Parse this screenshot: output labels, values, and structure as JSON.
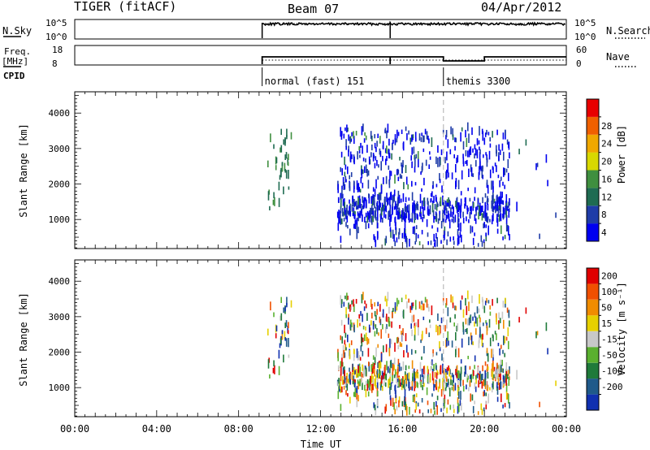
{
  "header": {
    "station": "TIGER (fitACF)",
    "beam": "Beam 07",
    "date": "04/Apr/2012"
  },
  "nsky_panel": {
    "left_label": "N.Sky",
    "right_label": "N.Search",
    "left_ticks": [
      "10^5",
      "10^0"
    ],
    "right_ticks": [
      "10^5",
      "10^0"
    ]
  },
  "freq_panel": {
    "left_label_1": "Freq.",
    "left_label_2": "[MHz]",
    "right_label": "Nave",
    "left_ticks": [
      "18",
      "8"
    ],
    "right_ticks": [
      "60",
      "0"
    ]
  },
  "cpid_panel": {
    "label": "CPID",
    "modes": [
      {
        "start_hour": 9.15,
        "text": "normal (fast) 151"
      },
      {
        "start_hour": 18.0,
        "text": "themis 3300"
      }
    ]
  },
  "x_axis": {
    "label": "Time UT",
    "ticks": [
      "00:00",
      "04:00",
      "08:00",
      "12:00",
      "16:00",
      "20:00",
      "00:00"
    ],
    "range_hours": [
      0,
      24
    ]
  },
  "power_panel": {
    "ylabel": "Slant Range [km]",
    "yticks": [
      "1000",
      "2000",
      "3000",
      "4000"
    ],
    "colorbar_label": "Power [dB]",
    "colorbar_ticks": [
      "4",
      "8",
      "12",
      "16",
      "20",
      "24",
      "28"
    ]
  },
  "velocity_panel": {
    "ylabel": "Slant Range [km]",
    "yticks": [
      "1000",
      "2000",
      "3000",
      "4000"
    ],
    "colorbar_label": "Velocity [m s⁻¹]",
    "colorbar_ticks": [
      "200",
      "100",
      "50",
      "15",
      "-15",
      "-50",
      "-100",
      "-200"
    ]
  },
  "colors": {
    "power_scale": [
      "#0000f0",
      "#1f3ca8",
      "#1f6b52",
      "#3f8f3f",
      "#d8d800",
      "#f0a800",
      "#f06000",
      "#e80000"
    ],
    "velocity_scale": [
      "#1030b0",
      "#1f5a8a",
      "#1f7a3a",
      "#5ab02f",
      "#c8c8c8",
      "#e6d000",
      "#f08c00",
      "#f05000",
      "#e00000"
    ]
  },
  "chart_data": [
    {
      "type": "line",
      "title": "N.Sky",
      "x_units": "hours UT",
      "segments": [
        {
          "x": [
            0,
            9.15,
            9.15,
            15.4,
            15.4,
            24
          ],
          "y_log10": [
            null,
            0,
            4.7,
            4.7,
            0,
            4.7
          ]
        }
      ],
      "ylim_log10": [
        0,
        5
      ],
      "note_text": ""
    },
    {
      "type": "line",
      "title": "Freq.",
      "x": [
        9.15,
        15.4,
        15.4,
        18.0,
        18.0,
        20.0,
        20.0,
        24.0
      ],
      "y": [
        11,
        11,
        11,
        10,
        10,
        10,
        11,
        11
      ],
      "ylim": [
        8,
        18
      ]
    },
    {
      "type": "heatmap",
      "title": "Power [dB]",
      "xlabel": "Time UT",
      "ylabel": "Slant Range [km]",
      "xlim": [
        0,
        24
      ],
      "ylim": [
        180,
        4600
      ],
      "colorbar_range": [
        0,
        30
      ],
      "data_clusters": [
        {
          "x_range": [
            9.5,
            10.5
          ],
          "y_range": [
            1200,
            3400
          ],
          "dominant_value": 12
        },
        {
          "x_range": [
            12.8,
            21.0
          ],
          "y_range": [
            200,
            3500
          ],
          "dominant_value": 5
        },
        {
          "x_range": [
            13.0,
            18.0
          ],
          "y_range": [
            900,
            1500
          ],
          "dominant_value": 6
        }
      ]
    },
    {
      "type": "heatmap",
      "title": "Velocity [m s⁻¹]",
      "xlabel": "Time UT",
      "ylabel": "Slant Range [km]",
      "xlim": [
        0,
        24
      ],
      "ylim": [
        180,
        4600
      ],
      "colorbar_range": [
        -250,
        250
      ],
      "data_clusters": [
        {
          "x_range": [
            9.5,
            10.5
          ],
          "y_range": [
            1200,
            3400
          ],
          "dominant_value": 0
        },
        {
          "x_range": [
            12.8,
            21.0
          ],
          "y_range": [
            200,
            3500
          ],
          "dominant_value": 0
        }
      ]
    }
  ]
}
